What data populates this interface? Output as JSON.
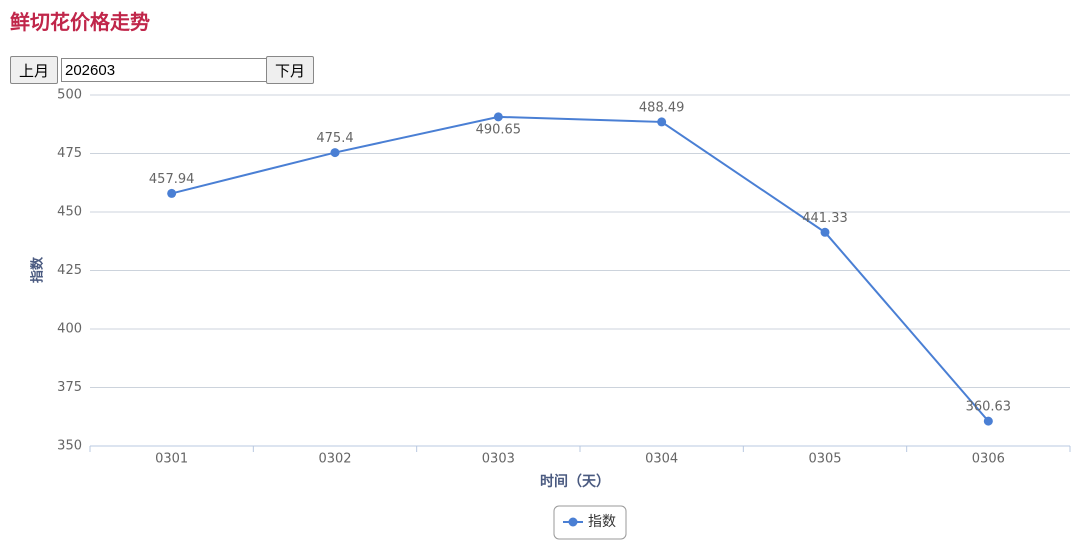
{
  "title": "鲜切花价格走势",
  "controls": {
    "prev": "上月",
    "month": "202603",
    "next": "下月"
  },
  "chart_data": {
    "type": "line",
    "x_label": "时间（天）",
    "y_label": "指数",
    "categories": [
      "0301",
      "0302",
      "0303",
      "0304",
      "0305",
      "0306"
    ],
    "series": [
      {
        "name": "指数",
        "color": "#4a7fd4",
        "values": [
          457.94,
          475.4,
          490.65,
          488.49,
          441.33,
          360.63
        ]
      }
    ],
    "ylim": [
      350,
      500
    ],
    "yticks": [
      350,
      375,
      400,
      425,
      450,
      475,
      500
    ],
    "grid": true,
    "legend": "bottom"
  }
}
